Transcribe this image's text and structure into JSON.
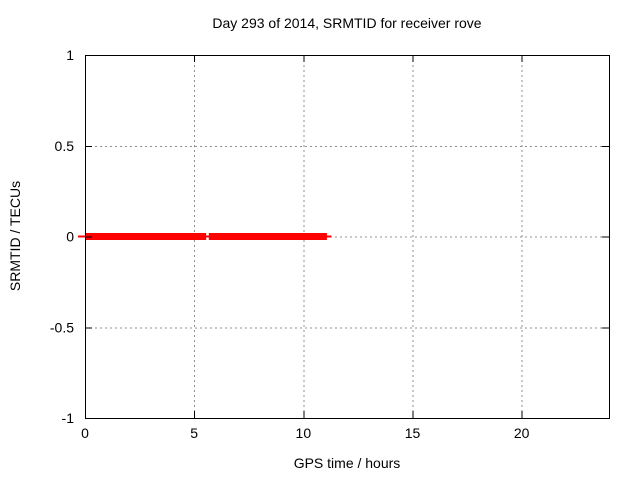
{
  "chart_data": {
    "type": "line",
    "title": "Day 293 of 2014, SRMTID for receiver rove",
    "xlabel": "GPS time / hours",
    "ylabel": "SRMTID / TECUs",
    "xlim": [
      0,
      24
    ],
    "ylim": [
      -1,
      1
    ],
    "grid": true,
    "legend_position": "none",
    "xticks": [
      {
        "value": 0,
        "label": "0"
      },
      {
        "value": 5,
        "label": "5"
      },
      {
        "value": 10,
        "label": "10"
      },
      {
        "value": 15,
        "label": "15"
      },
      {
        "value": 20,
        "label": "20"
      }
    ],
    "yticks": [
      {
        "value": -1,
        "label": "-1"
      },
      {
        "value": -0.5,
        "label": "-0.5"
      },
      {
        "value": 0,
        "label": "0"
      },
      {
        "value": 0.5,
        "label": "0.5"
      },
      {
        "value": 1,
        "label": "1"
      }
    ],
    "series": [
      {
        "name": "SRMTID",
        "color": "#ff0000",
        "y_value": 0,
        "x_range": [
          0,
          11.1
        ],
        "segments": [
          [
            0,
            5.55
          ],
          [
            5.67,
            11.08
          ]
        ]
      }
    ]
  },
  "colors": {
    "background": "#ffffff",
    "axis": "#000000",
    "grid": "#909090",
    "text": "#000000",
    "series_red": "#ff0000"
  }
}
